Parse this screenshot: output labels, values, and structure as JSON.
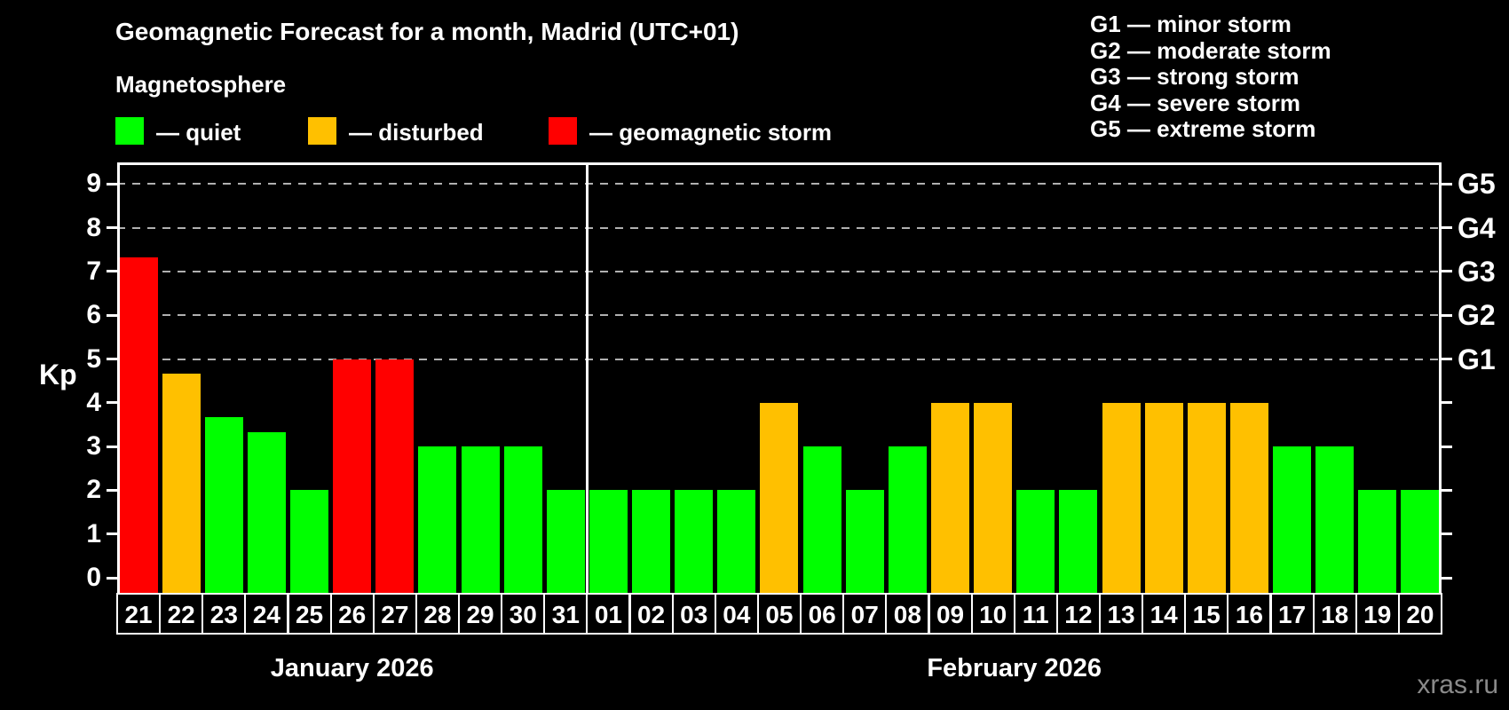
{
  "title": "Geomagnetic Forecast for a month, Madrid (UTC+01)",
  "subtitle": "Magnetosphere",
  "status_legend": {
    "items": [
      {
        "name": "quiet",
        "label": "— quiet",
        "color": "#00ff00"
      },
      {
        "name": "disturbed",
        "label": "— disturbed",
        "color": "#ffc000"
      },
      {
        "name": "storm",
        "label": "— geomagnetic storm",
        "color": "#ff0000"
      }
    ]
  },
  "g_legend": {
    "items": [
      {
        "label": "G1 — minor storm"
      },
      {
        "label": "G2 — moderate storm"
      },
      {
        "label": "G3 — strong storm"
      },
      {
        "label": "G4 — severe storm"
      },
      {
        "label": "G5 — extreme storm"
      }
    ]
  },
  "watermark": "xras.ru",
  "chart_data": {
    "type": "bar",
    "title": "Geomagnetic Forecast for a month, Madrid (UTC+01)",
    "subtitle": "Magnetosphere",
    "ylabel": "Kp",
    "ylim": [
      0,
      9.5
    ],
    "y_ticks": [
      0,
      1,
      2,
      3,
      4,
      5,
      6,
      7,
      8,
      9
    ],
    "grid": "horizontal dashed gray lines at Kp 5,6,7,8,9 (G1–G5), behind bars",
    "grid_color": "#b0b0b0",
    "right_axis_labels": [
      {
        "kp": 5,
        "label": "G1"
      },
      {
        "kp": 6,
        "label": "G2"
      },
      {
        "kp": 7,
        "label": "G3"
      },
      {
        "kp": 8,
        "label": "G4"
      },
      {
        "kp": 9,
        "label": "G5"
      }
    ],
    "status_colors": {
      "quiet": "#00ff00",
      "disturbed": "#ffc000",
      "storm": "#ff0000"
    },
    "months": [
      {
        "label": "January 2026",
        "days": 11
      },
      {
        "label": "February 2026",
        "days": 20
      }
    ],
    "categories": [
      "21",
      "22",
      "23",
      "24",
      "25",
      "26",
      "27",
      "28",
      "29",
      "30",
      "31",
      "01",
      "02",
      "03",
      "04",
      "05",
      "06",
      "07",
      "08",
      "09",
      "10",
      "11",
      "12",
      "13",
      "14",
      "15",
      "16",
      "17",
      "18",
      "19",
      "20"
    ],
    "values": [
      7.33,
      4.67,
      3.67,
      3.33,
      2,
      5,
      5,
      3,
      3,
      3,
      2,
      2,
      2,
      2,
      2,
      4,
      3,
      2,
      3,
      4,
      4,
      2,
      2,
      4,
      4,
      4,
      4,
      3,
      3,
      2,
      2
    ],
    "statuses": [
      "storm",
      "disturbed",
      "quiet",
      "quiet",
      "quiet",
      "storm",
      "storm",
      "quiet",
      "quiet",
      "quiet",
      "quiet",
      "quiet",
      "quiet",
      "quiet",
      "quiet",
      "disturbed",
      "quiet",
      "quiet",
      "quiet",
      "disturbed",
      "disturbed",
      "quiet",
      "quiet",
      "disturbed",
      "disturbed",
      "disturbed",
      "disturbed",
      "quiet",
      "quiet",
      "quiet",
      "quiet"
    ]
  }
}
